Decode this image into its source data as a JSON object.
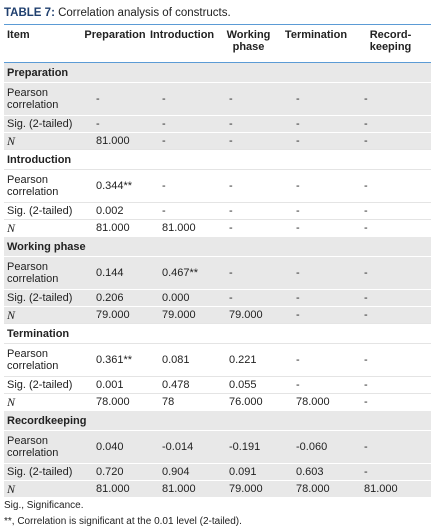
{
  "title_label": "TABLE 7:",
  "title": "Correlation analysis of constructs.",
  "header": [
    "Item",
    "Preparation",
    "Introduction",
    "Working phase",
    "Termination",
    "Record-keeping"
  ],
  "groups": [
    {
      "name": "Preparation",
      "rows": [
        [
          "Pearson correlation",
          "-",
          "-",
          "-",
          "-",
          "-"
        ],
        [
          "Sig. (2-tailed)",
          "-",
          "-",
          "-",
          "-",
          "-"
        ],
        [
          "N",
          "81.000",
          "-",
          "-",
          "-",
          "-"
        ]
      ]
    },
    {
      "name": "Introduction",
      "rows": [
        [
          "Pearson correlation",
          "0.344**",
          "-",
          "-",
          "-",
          "-"
        ],
        [
          "Sig. (2-tailed)",
          "0.002",
          "-",
          "-",
          "-",
          "-"
        ],
        [
          "N",
          "81.000",
          "81.000",
          "-",
          "-",
          "-"
        ]
      ]
    },
    {
      "name": "Working phase",
      "rows": [
        [
          "Pearson correlation",
          "0.144",
          "0.467**",
          "-",
          "-",
          "-"
        ],
        [
          "Sig. (2-tailed)",
          "0.206",
          "0.000",
          "-",
          "-",
          "-"
        ],
        [
          "N",
          "79.000",
          "79.000",
          "79.000",
          "-",
          "-"
        ]
      ]
    },
    {
      "name": "Termination",
      "rows": [
        [
          "Pearson correlation",
          "0.361**",
          "0.081",
          "0.221",
          "-",
          "-"
        ],
        [
          "Sig. (2-tailed)",
          "0.001",
          "0.478",
          "0.055",
          "-",
          "-"
        ],
        [
          "N",
          "78.000",
          "78",
          "76.000",
          "78.000",
          "-"
        ]
      ]
    },
    {
      "name": "Recordkeeping",
      "rows": [
        [
          "Pearson correlation",
          "0.040",
          "-0.014",
          "-0.191",
          "-0.060",
          "-"
        ],
        [
          "Sig. (2-tailed)",
          "0.720",
          "0.904",
          "0.091",
          "0.603",
          "-"
        ],
        [
          "N",
          "81.000",
          "81.000",
          "79.000",
          "78.000",
          "81.000"
        ]
      ]
    }
  ],
  "footnotes": [
    "Sig., Significance.",
    "**, Correlation is significant at the 0.01 level (2-tailed)."
  ]
}
